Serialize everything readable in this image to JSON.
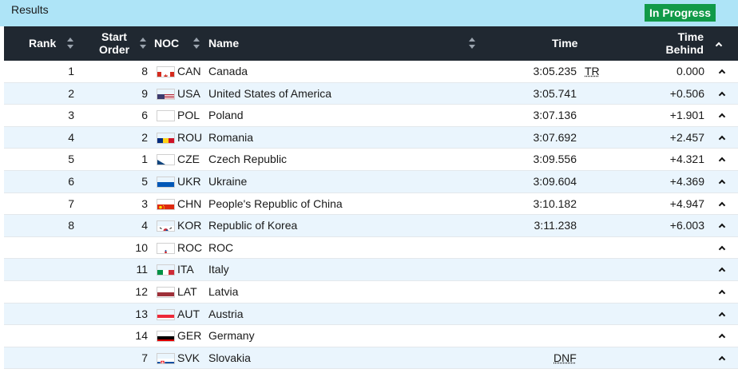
{
  "header": {
    "title": "Results",
    "status_badge": "In Progress"
  },
  "columns": {
    "rank": "Rank",
    "start_order_1": "Start",
    "start_order_2": "Order",
    "noc": "NOC",
    "name": "Name",
    "time": "Time",
    "behind_1": "Time",
    "behind_2": "Behind"
  },
  "rows": [
    {
      "rank": "1",
      "order": "8",
      "noc": "CAN",
      "name": "Canada",
      "time": "3:05.235",
      "note": "TR",
      "behind": "0.000",
      "flag": "ca"
    },
    {
      "rank": "2",
      "order": "9",
      "noc": "USA",
      "name": "United States of America",
      "time": "3:05.741",
      "note": "",
      "behind": "+0.506",
      "flag": "us"
    },
    {
      "rank": "3",
      "order": "6",
      "noc": "POL",
      "name": "Poland",
      "time": "3:07.136",
      "note": "",
      "behind": "+1.901",
      "flag": "pl"
    },
    {
      "rank": "4",
      "order": "2",
      "noc": "ROU",
      "name": "Romania",
      "time": "3:07.692",
      "note": "",
      "behind": "+2.457",
      "flag": "ro"
    },
    {
      "rank": "5",
      "order": "1",
      "noc": "CZE",
      "name": "Czech Republic",
      "time": "3:09.556",
      "note": "",
      "behind": "+4.321",
      "flag": "cz"
    },
    {
      "rank": "6",
      "order": "5",
      "noc": "UKR",
      "name": "Ukraine",
      "time": "3:09.604",
      "note": "",
      "behind": "+4.369",
      "flag": "ua"
    },
    {
      "rank": "7",
      "order": "3",
      "noc": "CHN",
      "name": "People's Republic of China",
      "time": "3:10.182",
      "note": "",
      "behind": "+4.947",
      "flag": "cn"
    },
    {
      "rank": "8",
      "order": "4",
      "noc": "KOR",
      "name": "Republic of Korea",
      "time": "3:11.238",
      "note": "",
      "behind": "+6.003",
      "flag": "kr"
    },
    {
      "rank": "",
      "order": "10",
      "noc": "ROC",
      "name": "ROC",
      "time": "",
      "note": "",
      "behind": "",
      "flag": "roc"
    },
    {
      "rank": "",
      "order": "11",
      "noc": "ITA",
      "name": "Italy",
      "time": "",
      "note": "",
      "behind": "",
      "flag": "it"
    },
    {
      "rank": "",
      "order": "12",
      "noc": "LAT",
      "name": "Latvia",
      "time": "",
      "note": "",
      "behind": "",
      "flag": "lv"
    },
    {
      "rank": "",
      "order": "13",
      "noc": "AUT",
      "name": "Austria",
      "time": "",
      "note": "",
      "behind": "",
      "flag": "at"
    },
    {
      "rank": "",
      "order": "14",
      "noc": "GER",
      "name": "Germany",
      "time": "",
      "note": "",
      "behind": "",
      "flag": "de"
    },
    {
      "rank": "",
      "order": "7",
      "noc": "SVK",
      "name": "Slovakia",
      "time": "",
      "note": "DNF",
      "behind": "",
      "flag": "sk"
    }
  ],
  "colors": {
    "header_bg": "#aee4f7",
    "table_head_bg": "#202831",
    "badge_bg": "#119a48",
    "row_alt_bg": "#eaf5fd"
  }
}
